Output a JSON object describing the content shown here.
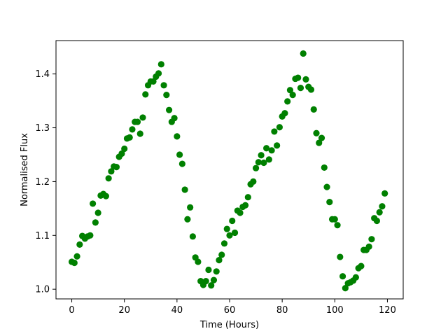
{
  "chart_data": {
    "type": "scatter",
    "title": "",
    "xlabel": "Time (Hours)",
    "ylabel": "Normalised Flux",
    "xlim": [
      -6,
      126
    ],
    "ylim": [
      0.982,
      1.462
    ],
    "xticks": [
      0,
      20,
      40,
      60,
      80,
      100,
      120
    ],
    "xtick_labels": [
      "0",
      "20",
      "40",
      "60",
      "80",
      "100",
      "120"
    ],
    "yticks": [
      1.0,
      1.1,
      1.2,
      1.3,
      1.4
    ],
    "ytick_labels": [
      "1.0",
      "1.1",
      "1.2",
      "1.3",
      "1.4"
    ],
    "grid": false,
    "legend": "none",
    "marker_color": "#008000",
    "series": [
      {
        "x": [
          0,
          1,
          2,
          3,
          4,
          5,
          6,
          7,
          8,
          9,
          10,
          11,
          12,
          13,
          14,
          15,
          16,
          17,
          18,
          19,
          20,
          21,
          22,
          23,
          24,
          25,
          26,
          27,
          28,
          29,
          30,
          31,
          32,
          33,
          34,
          35,
          36,
          37,
          38,
          39,
          40,
          41,
          42,
          43,
          44,
          45,
          46,
          47,
          48,
          49,
          50,
          51,
          52,
          53,
          54,
          55,
          56,
          57,
          58,
          59,
          60,
          61,
          62,
          63,
          64,
          65,
          66,
          67,
          68,
          69,
          70,
          71,
          72,
          73,
          74,
          75,
          76,
          77,
          78,
          79,
          80,
          81,
          82,
          83,
          84,
          85,
          86,
          87,
          88,
          89,
          90,
          91,
          92,
          93,
          94,
          95,
          96,
          97,
          98,
          99,
          100,
          101,
          102,
          103,
          104,
          105,
          106,
          107,
          108,
          109,
          110,
          111,
          112,
          113,
          114,
          115,
          116,
          117,
          118,
          119
        ],
        "y": [
          1.051,
          1.049,
          1.061,
          1.083,
          1.099,
          1.094,
          1.098,
          1.1,
          1.159,
          1.124,
          1.142,
          1.174,
          1.177,
          1.173,
          1.206,
          1.219,
          1.228,
          1.227,
          1.246,
          1.252,
          1.261,
          1.28,
          1.282,
          1.297,
          1.311,
          1.311,
          1.289,
          1.319,
          1.362,
          1.379,
          1.386,
          1.386,
          1.395,
          1.401,
          1.418,
          1.379,
          1.361,
          1.333,
          1.311,
          1.318,
          1.284,
          1.25,
          1.233,
          1.185,
          1.13,
          1.152,
          1.098,
          1.059,
          1.051,
          1.015,
          1.008,
          1.015,
          1.036,
          1.007,
          1.017,
          1.033,
          1.054,
          1.064,
          1.085,
          1.112,
          1.1,
          1.127,
          1.105,
          1.146,
          1.142,
          1.153,
          1.156,
          1.171,
          1.195,
          1.2,
          1.225,
          1.236,
          1.249,
          1.235,
          1.262,
          1.241,
          1.258,
          1.293,
          1.267,
          1.301,
          1.321,
          1.327,
          1.349,
          1.37,
          1.361,
          1.391,
          1.393,
          1.374,
          1.438,
          1.39,
          1.376,
          1.371,
          1.334,
          1.29,
          1.272,
          1.281,
          1.226,
          1.19,
          1.162,
          1.13,
          1.13,
          1.119,
          1.06,
          1.024,
          1.002,
          1.011,
          1.013,
          1.016,
          1.022,
          1.039,
          1.043,
          1.073,
          1.073,
          1.079,
          1.093,
          1.132,
          1.127,
          1.143,
          1.154,
          1.178
        ]
      }
    ]
  }
}
